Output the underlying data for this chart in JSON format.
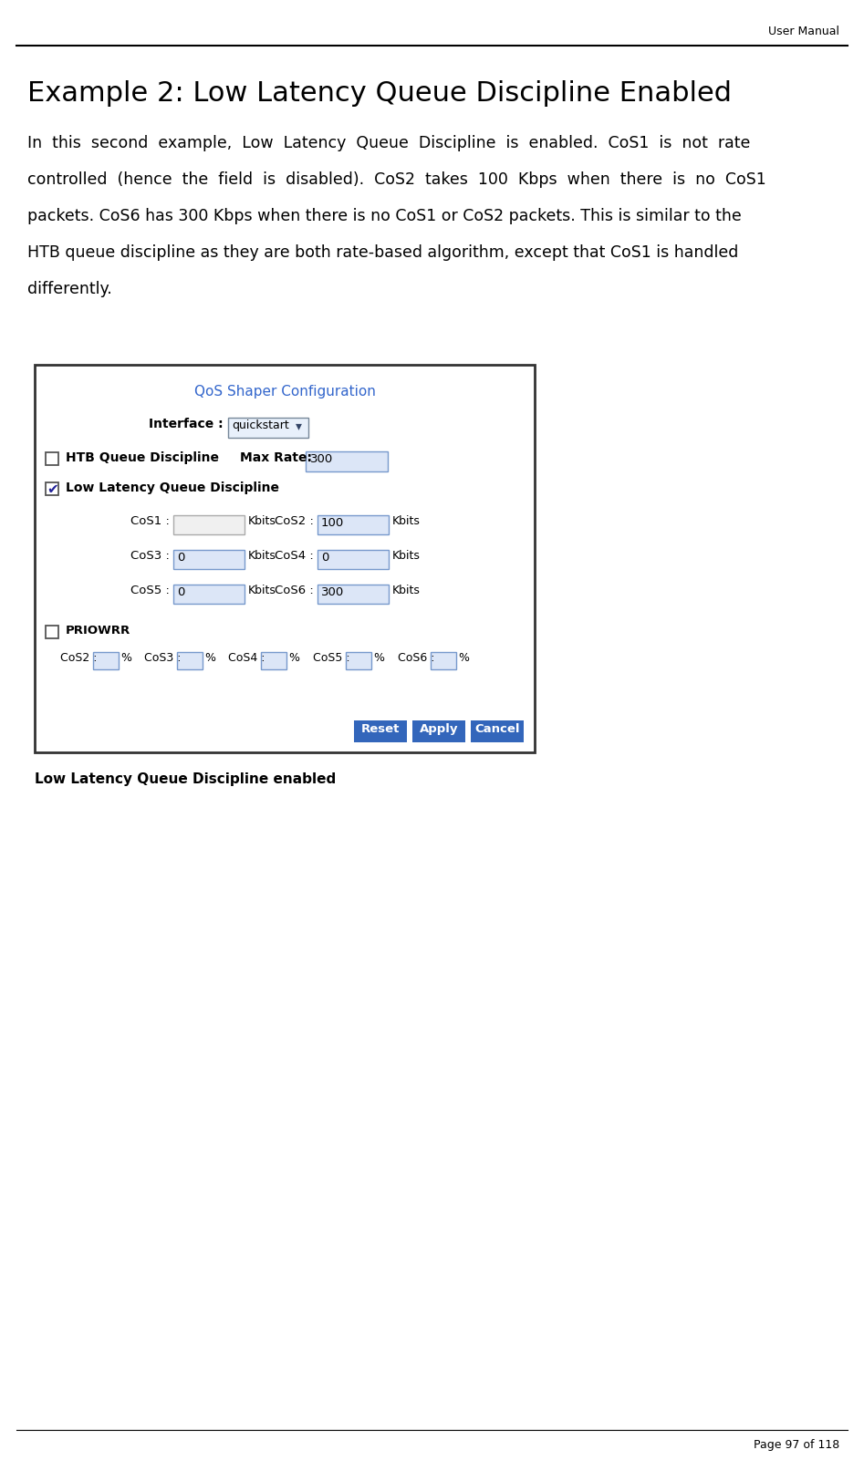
{
  "header_text": "User Manual",
  "title": "Example 2: Low Latency Queue Discipline Enabled",
  "body_lines": [
    "In  this  second  example,  Low  Latency  Queue  Discipline  is  enabled.  CoS1  is  not  rate",
    "controlled  (hence  the  field  is  disabled).  CoS2  takes  100  Kbps  when  there  is  no  CoS1",
    "packets. CoS6 has 300 Kbps when there is no CoS1 or CoS2 packets. This is similar to the",
    "HTB queue discipline as they are both rate-based algorithm, except that CoS1 is handled",
    "differently."
  ],
  "panel_title": "QoS Shaper Configuration",
  "panel_title_color": "#3366cc",
  "interface_label": "Interface :",
  "interface_value": "quickstart",
  "htb_label": "HTB Queue Discipline",
  "maxrate_label": "Max Rate:",
  "maxrate_value": "300",
  "llqd_label": "Low Latency Queue Discipline",
  "cos_rows": [
    {
      "left_label": "CoS1 :",
      "left_value": "",
      "left_disabled": true,
      "right_label": "CoS2 :",
      "right_value": "100"
    },
    {
      "left_label": "CoS3 :",
      "left_value": "0",
      "left_disabled": false,
      "right_label": "CoS4 :",
      "right_value": "0"
    },
    {
      "left_label": "CoS5 :",
      "left_value": "0",
      "left_disabled": false,
      "right_label": "CoS6 :",
      "right_value": "300"
    }
  ],
  "priowrr_label": "PRIOWRR",
  "wrr_labels": [
    "CoS2 :",
    "CoS3 :",
    "CoS4 :",
    "CoS5 :",
    "CoS6 :"
  ],
  "buttons": [
    "Reset",
    "Apply",
    "Cancel"
  ],
  "caption": "Low Latency Queue Discipline enabled",
  "footer": "Page 97 of 118",
  "bg_color": "#ffffff",
  "input_bg_blue": "#dce6f7",
  "input_bg_disabled": "#f0f0f0",
  "input_border_blue": "#7799cc",
  "input_border_disabled": "#aaaaaa",
  "button_color": "#3366bb",
  "panel_border": "#333333",
  "title_fontsize": 22,
  "body_fontsize": 12.5,
  "panel_title_fontsize": 11,
  "label_fontsize": 10,
  "input_fontsize": 9.5,
  "caption_fontsize": 11,
  "footer_fontsize": 9
}
